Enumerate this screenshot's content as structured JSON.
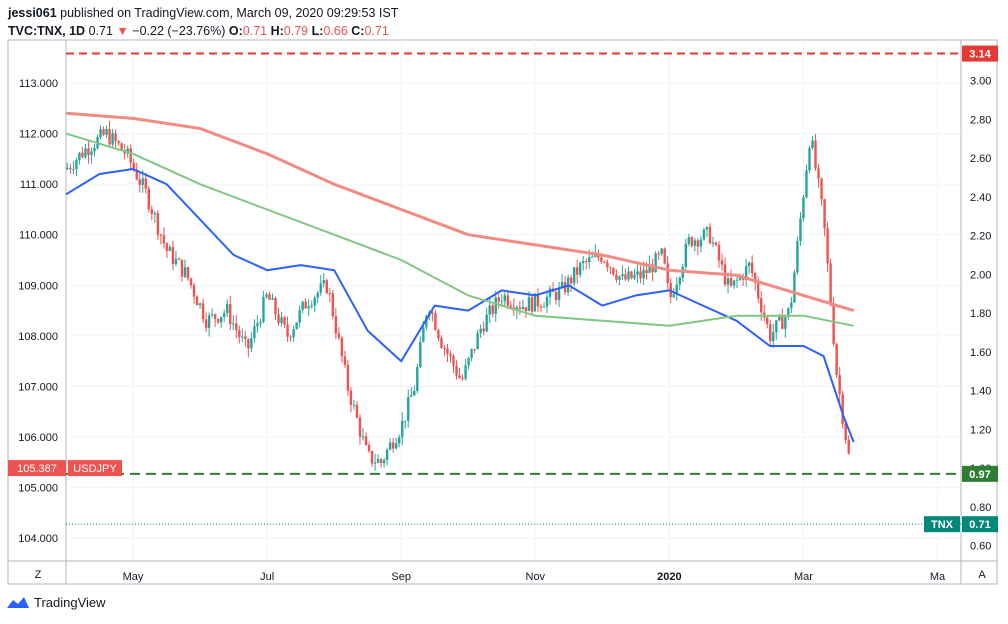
{
  "header": {
    "author": "jessi061",
    "published": "published on TradingView.com, March 09, 2020 09:29:53 IST",
    "symbol": "TVC:TNX, 1D",
    "last": "0.71",
    "arrow": "▼",
    "change": "−0.22 (−23.76%)",
    "o_label": "O:",
    "o_val": "0.71",
    "h_label": "H:",
    "h_val": "0.79",
    "l_label": "L:",
    "l_val": "0.66",
    "c_label": "C:",
    "c_val": "0.71"
  },
  "footer": {
    "brand": "TradingView"
  },
  "colors": {
    "up": "#26a69a",
    "down": "#ef5350",
    "ma_fast": "#2962ff",
    "ma_mid": "#81c784",
    "ma_slow": "#f28b82",
    "dash_red": "#e53935",
    "dash_green": "#2e7d32",
    "usdjpy_badge": "#ef5350",
    "tnx_badge": "#00897b"
  },
  "chart_data": {
    "type": "line",
    "title": "",
    "left_axis": {
      "ticks": [
        "113.000",
        "112.000",
        "111.000",
        "110.000",
        "109.000",
        "108.000",
        "107.000",
        "106.000",
        "105.000",
        "104.000"
      ],
      "values": [
        113,
        112,
        111,
        110,
        109,
        108,
        107,
        106,
        105,
        104
      ],
      "range": [
        103.55,
        113.85
      ]
    },
    "right_axis": {
      "ticks": [
        "3.00",
        "2.80",
        "2.60",
        "2.40",
        "2.20",
        "2.00",
        "1.80",
        "1.60",
        "1.40",
        "1.20",
        "1.00",
        "0.80",
        "0.60"
      ],
      "values": [
        3.0,
        2.8,
        2.6,
        2.4,
        2.2,
        2.0,
        1.8,
        1.6,
        1.4,
        1.2,
        1.0,
        0.8,
        0.6
      ],
      "range": [
        0.52,
        3.21
      ]
    },
    "x_ticks": [
      "May",
      "Jul",
      "Sep",
      "Nov",
      "2020",
      "Mar",
      "Ma"
    ],
    "x_tick_months": [
      1,
      3,
      5,
      7,
      9,
      11,
      13
    ],
    "x_range_months": [
      0.0,
      13.35
    ],
    "series": [
      {
        "kind": "close_path_usdjpy",
        "x": [
          0.0,
          0.3,
          0.6,
          0.9,
          1.2,
          1.5,
          1.8,
          2.1,
          2.4,
          2.7,
          3.0,
          3.3,
          3.6,
          3.9,
          4.2,
          4.5,
          4.7,
          4.9,
          5.0,
          5.2,
          5.4,
          5.6,
          5.9,
          6.2,
          6.5,
          6.8,
          7.1,
          7.4,
          7.7,
          8.0,
          8.3,
          8.6,
          8.9,
          9.0,
          9.3,
          9.6,
          9.9,
          10.2,
          10.5,
          10.8,
          11.1,
          11.3,
          11.5,
          11.7
        ],
        "y": [
          111.3,
          111.7,
          112.0,
          111.6,
          110.8,
          109.7,
          109.2,
          108.3,
          108.5,
          107.7,
          108.8,
          108.0,
          108.7,
          109.0,
          107.0,
          105.6,
          105.5,
          106.0,
          106.2,
          107.0,
          108.7,
          107.9,
          107.1,
          108.2,
          108.8,
          108.6,
          108.7,
          108.9,
          109.4,
          109.6,
          109.1,
          109.2,
          109.6,
          108.7,
          109.9,
          110.0,
          108.9,
          109.4,
          108.0,
          108.5,
          112.0,
          110.3,
          107.2,
          105.4
        ]
      },
      {
        "name": "TNX",
        "kind": "close_path_tnx_right",
        "x": [
          0.0,
          0.5,
          1.0,
          1.5,
          2.0,
          2.5,
          3.0,
          3.5,
          4.0,
          4.5,
          5.0,
          5.5,
          6.0,
          6.5,
          7.0,
          7.5,
          8.0,
          8.5,
          9.0,
          9.5,
          10.0,
          10.5,
          11.0,
          11.2,
          11.45,
          11.55,
          11.7,
          11.8
        ],
        "y": [
          2.5,
          2.52,
          2.45,
          2.35,
          2.2,
          2.1,
          2.05,
          2.05,
          1.9,
          1.6,
          1.5,
          1.55,
          1.7,
          1.7,
          1.8,
          1.8,
          1.88,
          1.8,
          1.82,
          1.76,
          1.78,
          1.7,
          1.6,
          1.58,
          1.6,
          1.3,
          1.1,
          0.71
        ]
      }
    ],
    "moving_averages": [
      {
        "kind": "ma_fast",
        "x": [
          0.0,
          0.5,
          1.0,
          1.5,
          2.0,
          2.5,
          3.0,
          3.5,
          4.0,
          4.5,
          5.0,
          5.5,
          6.0,
          6.5,
          7.0,
          7.5,
          8.0,
          8.5,
          9.0,
          9.5,
          10.0,
          10.5,
          11.0,
          11.3,
          11.6,
          11.75
        ],
        "y": [
          110.8,
          111.2,
          111.3,
          111.0,
          110.3,
          109.6,
          109.3,
          109.4,
          109.3,
          108.1,
          107.5,
          108.6,
          108.5,
          108.9,
          108.8,
          109.0,
          108.6,
          108.8,
          108.9,
          108.6,
          108.3,
          107.8,
          107.8,
          107.6,
          106.4,
          105.9
        ]
      },
      {
        "kind": "ma_mid",
        "x": [
          0.0,
          1.0,
          2.0,
          3.0,
          4.0,
          5.0,
          6.0,
          7.0,
          8.0,
          9.0,
          10.0,
          11.0,
          11.75
        ],
        "y": [
          112.0,
          111.6,
          111.0,
          110.5,
          110.0,
          109.5,
          108.8,
          108.4,
          108.3,
          108.2,
          108.4,
          108.4,
          108.2
        ]
      },
      {
        "kind": "ma_slow",
        "x": [
          0.0,
          1.0,
          2.0,
          3.0,
          4.0,
          5.0,
          6.0,
          7.0,
          8.0,
          9.0,
          10.0,
          11.0,
          11.75
        ],
        "y": [
          112.4,
          112.3,
          112.1,
          111.6,
          111.0,
          110.5,
          110.0,
          109.8,
          109.6,
          109.3,
          109.2,
          108.8,
          108.5
        ]
      }
    ],
    "lines": [
      {
        "kind": "dash_red",
        "value": 3.14,
        "axis": "right",
        "label": "3.14"
      },
      {
        "kind": "dash_green",
        "value": 0.97,
        "axis": "right",
        "label": "0.97"
      },
      {
        "kind": "dot_tnx",
        "value": 0.71,
        "axis": "right",
        "label": "0.71",
        "badge": "TNX"
      },
      {
        "kind": "usdjpy_last",
        "value": 105.387,
        "axis": "left",
        "label": "105.387",
        "badge": "USDJPY"
      }
    ],
    "corner_buttons": [
      "Z",
      "A"
    ],
    "grid": true,
    "legend": "none"
  }
}
